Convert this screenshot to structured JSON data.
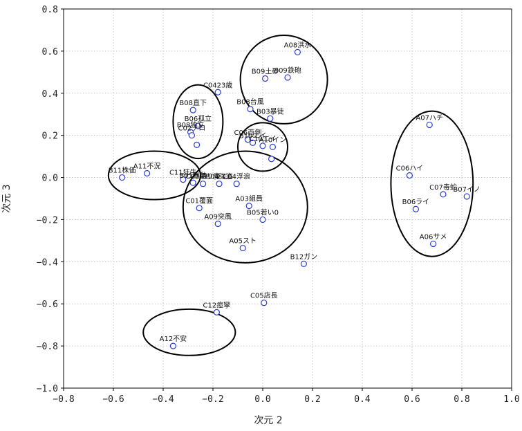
{
  "chart_data": {
    "type": "scatter",
    "xlabel": "次元 2",
    "ylabel": "次元 3",
    "xlim": [
      -0.8,
      1.0
    ],
    "ylim": [
      -1.0,
      0.8
    ],
    "x_ticks": [
      -0.8,
      -0.6,
      -0.4,
      -0.2,
      0.0,
      0.2,
      0.4,
      0.6,
      0.8,
      1.0
    ],
    "y_ticks": [
      -1.0,
      -0.8,
      -0.6,
      -0.4,
      -0.2,
      0.0,
      0.2,
      0.4,
      0.6,
      0.8
    ],
    "x_tick_labels": [
      "−0.8",
      "−0.6",
      "−0.4",
      "−0.2",
      "0.0",
      "0.2",
      "0.4",
      "0.6",
      "0.8",
      "1.0"
    ],
    "y_tick_labels": [
      "−1.0",
      "−0.8",
      "−0.6",
      "−0.4",
      "−0.2",
      "0.0",
      "0.2",
      "0.4",
      "0.6",
      "0.8"
    ],
    "grid": true,
    "points": [
      {
        "label": "A08洪水",
        "x": 0.14,
        "y": 0.595
      },
      {
        "label": "B09土砂",
        "x": 0.01,
        "y": 0.47
      },
      {
        "label": "B09鉄砲",
        "x": 0.1,
        "y": 0.475
      },
      {
        "label": "C0423歳",
        "x": -0.18,
        "y": 0.405
      },
      {
        "label": "B08台風",
        "x": -0.05,
        "y": 0.325
      },
      {
        "label": "B03暴徒",
        "x": 0.03,
        "y": 0.28
      },
      {
        "label": "B08直下",
        "x": -0.28,
        "y": 0.32
      },
      {
        "label": "B06孤立",
        "x": -0.26,
        "y": 0.245
      },
      {
        "label": "B08独立",
        "x": -0.29,
        "y": 0.215
      },
      {
        "label": "C02テロ",
        "x": -0.285,
        "y": 0.2
      },
      {
        "label": "",
        "x": -0.265,
        "y": 0.155
      },
      {
        "label": "C06西側",
        "x": -0.06,
        "y": 0.18
      },
      {
        "label": "B10エイ",
        "x": -0.04,
        "y": 0.165
      },
      {
        "label": "C10エイ",
        "x": 0.0,
        "y": 0.15
      },
      {
        "label": "A10イン",
        "x": 0.04,
        "y": 0.145
      },
      {
        "label": "",
        "x": 0.035,
        "y": 0.088
      },
      {
        "label": "B11株価",
        "x": -0.565,
        "y": 0.0
      },
      {
        "label": "A11不況",
        "x": -0.465,
        "y": 0.02
      },
      {
        "label": "C11狂牛",
        "x": -0.32,
        "y": -0.01
      },
      {
        "label": "B01暴動",
        "x": -0.28,
        "y": -0.025
      },
      {
        "label": "C03通り魔",
        "x": -0.24,
        "y": -0.03
      },
      {
        "label": "B04強盗",
        "x": -0.175,
        "y": -0.03
      },
      {
        "label": "C04浮浪",
        "x": -0.105,
        "y": -0.03
      },
      {
        "label": "A03組員",
        "x": -0.055,
        "y": -0.135
      },
      {
        "label": "C01覆面",
        "x": -0.255,
        "y": -0.145
      },
      {
        "label": "A09突風",
        "x": -0.18,
        "y": -0.22
      },
      {
        "label": "B05若い0",
        "x": 0.0,
        "y": -0.2
      },
      {
        "label": "A05スト",
        "x": -0.08,
        "y": -0.335
      },
      {
        "label": "B12ガン",
        "x": 0.165,
        "y": -0.41
      },
      {
        "label": "A07ハチ",
        "x": 0.67,
        "y": 0.25
      },
      {
        "label": "C06ハイ",
        "x": 0.59,
        "y": 0.01
      },
      {
        "label": "C07毒蛇",
        "x": 0.725,
        "y": -0.08
      },
      {
        "label": "B07イノ",
        "x": 0.82,
        "y": -0.09
      },
      {
        "label": "B06ライ",
        "x": 0.615,
        "y": -0.15
      },
      {
        "label": "A06サメ",
        "x": 0.685,
        "y": -0.315
      },
      {
        "label": "C05店長",
        "x": 0.005,
        "y": -0.595
      },
      {
        "label": "C12痙攣",
        "x": -0.185,
        "y": -0.64
      },
      {
        "label": "A12不安",
        "x": -0.36,
        "y": -0.8
      }
    ],
    "clusters": [
      {
        "cx": 0.085,
        "cy": 0.465,
        "rx": 0.175,
        "ry": 0.21
      },
      {
        "cx": -0.26,
        "cy": 0.265,
        "rx": 0.1,
        "ry": 0.175
      },
      {
        "cx": 0.0,
        "cy": 0.145,
        "rx": 0.1,
        "ry": 0.115
      },
      {
        "cx": -0.435,
        "cy": 0.01,
        "rx": 0.185,
        "ry": 0.115
      },
      {
        "cx": -0.07,
        "cy": -0.14,
        "rx": 0.25,
        "ry": 0.265
      },
      {
        "cx": 0.68,
        "cy": -0.03,
        "rx": 0.165,
        "ry": 0.345
      },
      {
        "cx": -0.295,
        "cy": -0.735,
        "rx": 0.185,
        "ry": 0.11
      }
    ]
  }
}
